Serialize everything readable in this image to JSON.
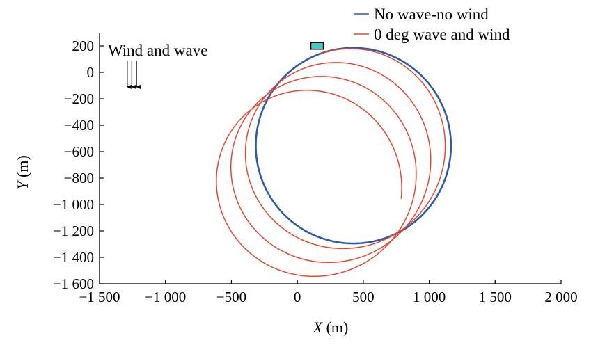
{
  "chart_data": {
    "type": "line",
    "title": "",
    "xlabel_var": "X",
    "xlabel_unit": " (m)",
    "ylabel_var": "Y",
    "ylabel_unit": " (m)",
    "xlim": [
      -1500,
      2000
    ],
    "ylim": [
      -1600,
      200
    ],
    "xticks": [
      -1500,
      -1000,
      -500,
      0,
      500,
      1000,
      1500,
      2000
    ],
    "xtick_labels": [
      "−1 500",
      "−1 000",
      "−500",
      "0",
      "500",
      "1 000",
      "1 500",
      "2 000"
    ],
    "yticks": [
      200,
      0,
      -200,
      -400,
      -600,
      -800,
      -1000,
      -1200,
      -1400,
      -1600
    ],
    "ytick_labels": [
      "200",
      "0",
      "−200",
      "−400",
      "−600",
      "−800",
      "−1 000",
      "−1 200",
      "−1 400",
      "−1 600"
    ],
    "grid": false,
    "legend_position": "top-right",
    "series": [
      {
        "name": "No wave-no wind",
        "color": "#2e5aa8",
        "circle": {
          "center_x": 425,
          "center_y": -555,
          "radius": 740
        }
      },
      {
        "name": "0 deg wave and wind",
        "color": "#e8472f",
        "drifting_spiral": {
          "start_x": 150,
          "start_y": 200,
          "center_x": 425,
          "center_y": -545,
          "radius": 730,
          "drift_per_turn_x": -110,
          "drift_per_turn_y": -105,
          "turns": 3.32
        }
      }
    ],
    "annotations": {
      "wind_label": "Wind and wave",
      "wind_arrows_x": [
        -1290,
        -1255,
        -1220
      ],
      "wind_arrow_y_from": 85,
      "wind_arrow_y_to": -110,
      "ship_marker": {
        "x": 150,
        "y": 200,
        "width": 95,
        "height": 50,
        "color": "#49c7c7"
      }
    }
  }
}
